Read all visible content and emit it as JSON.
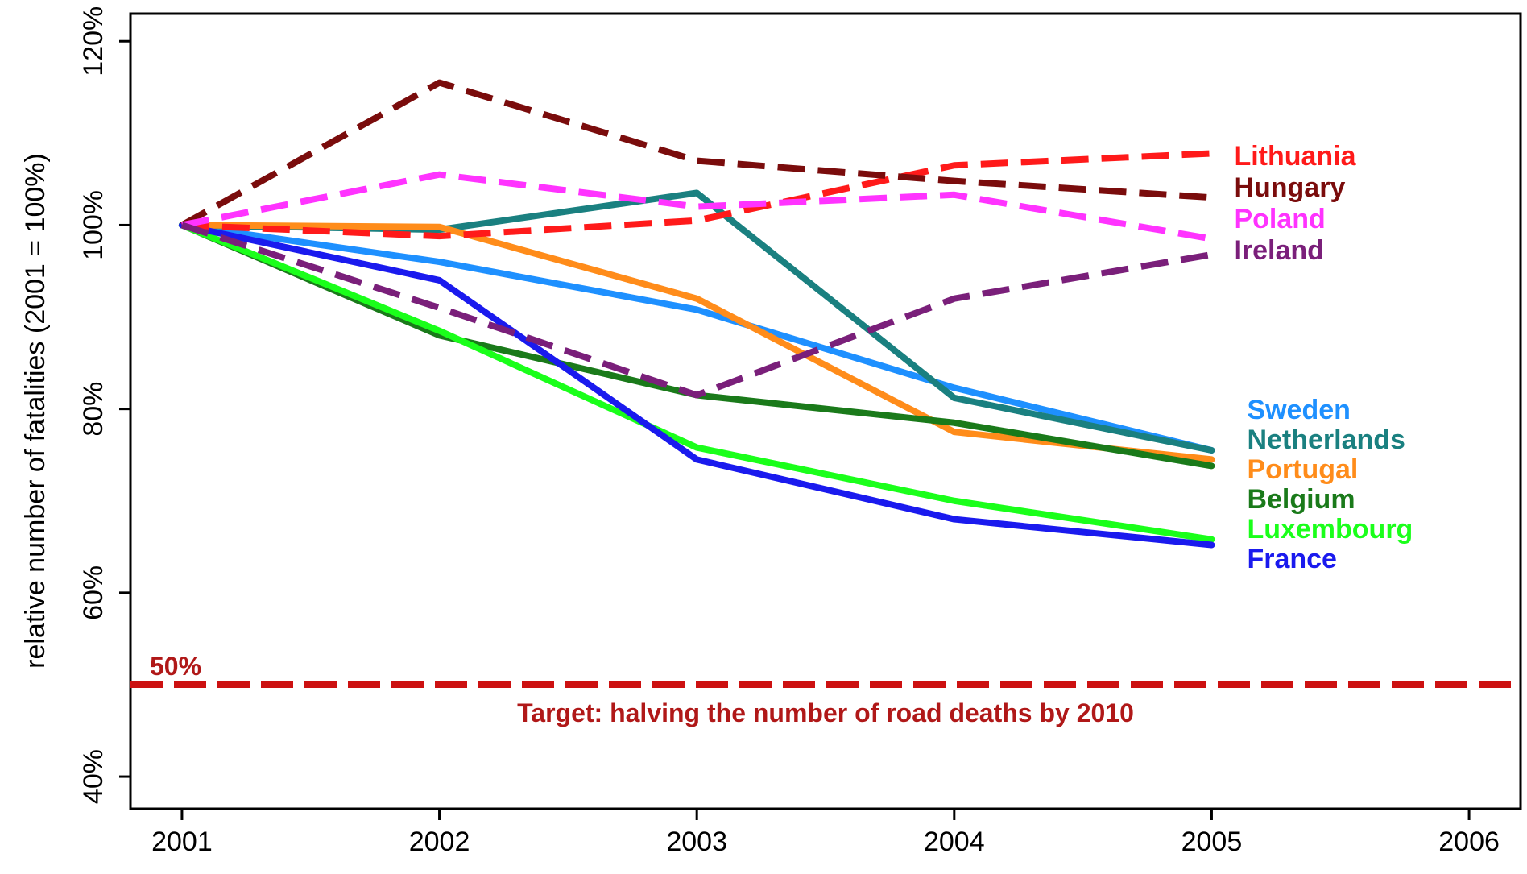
{
  "chart_data": {
    "type": "line",
    "title": "",
    "xlabel": "",
    "ylabel": "relative number of fatalities (2001 = 100%)",
    "x": [
      2001,
      2002,
      2003,
      2004,
      2005
    ],
    "xlim": [
      2000.8,
      2006.2
    ],
    "ylim": [
      36.5,
      123
    ],
    "xticks": [
      "2001",
      "2002",
      "2003",
      "2004",
      "2005",
      "2006"
    ],
    "yticks": [
      "40%",
      "60%",
      "80%",
      "100%",
      "120%"
    ],
    "grid": false,
    "series": [
      {
        "name": "Lithuania",
        "color": "#ff1a1a",
        "dash": true,
        "values": [
          100,
          98.8,
          100.5,
          106.5,
          107.8
        ]
      },
      {
        "name": "Hungary",
        "color": "#7a0c0c",
        "dash": true,
        "values": [
          100,
          115.5,
          107,
          104.8,
          103
        ]
      },
      {
        "name": "Poland",
        "color": "#ff33ff",
        "dash": true,
        "values": [
          100,
          105.5,
          102,
          103.3,
          98.5
        ]
      },
      {
        "name": "Ireland",
        "color": "#7a1f7a",
        "dash": true,
        "values": [
          100,
          91,
          81.5,
          92,
          96.8
        ]
      },
      {
        "name": "Sweden",
        "color": "#1e90ff",
        "dash": false,
        "values": [
          100,
          96,
          90.8,
          82.3,
          75.5
        ]
      },
      {
        "name": "Netherlands",
        "color": "#1a8080",
        "dash": false,
        "values": [
          100,
          99.5,
          103.5,
          81.2,
          75.5
        ]
      },
      {
        "name": "Portugal",
        "color": "#ff8c1a",
        "dash": false,
        "values": [
          100,
          99.8,
          92,
          77.5,
          74.5
        ]
      },
      {
        "name": "Belgium",
        "color": "#1a7a1a",
        "dash": false,
        "values": [
          100,
          88,
          81.5,
          78.5,
          73.8
        ]
      },
      {
        "name": "Luxembourg",
        "color": "#1aff1a",
        "dash": false,
        "values": [
          100,
          88.5,
          75.8,
          70,
          65.8
        ]
      },
      {
        "name": "France",
        "color": "#1a1aee",
        "dash": false,
        "values": [
          100,
          94,
          74.5,
          68,
          65.2
        ]
      }
    ],
    "labels_order": [
      "Lithuania",
      "Hungary",
      "Poland",
      "Ireland",
      "Sweden",
      "Netherlands",
      "Portugal",
      "Belgium",
      "Luxembourg",
      "France"
    ],
    "reference_line": {
      "value": 50,
      "label": "50%",
      "annotation": "Target: halving the number of road deaths by 2010",
      "color": "#cc1111"
    }
  }
}
